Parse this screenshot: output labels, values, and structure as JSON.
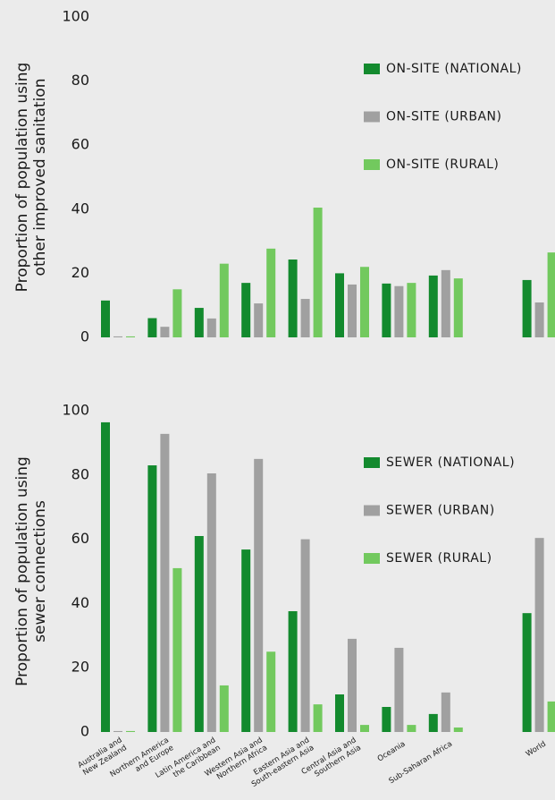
{
  "chart_data": [
    {
      "type": "bar",
      "ylabel": [
        "Proportion of population using",
        "other improved sanitation"
      ],
      "ylim": [
        0,
        100
      ],
      "yticks": [
        0,
        20,
        40,
        60,
        80,
        100
      ],
      "series": [
        {
          "name": "ON-SITE (NATIONAL)",
          "color": "#138a2e",
          "values": [
            11.5,
            6,
            9.2,
            17,
            24.3,
            20,
            16.8,
            19.3,
            null,
            17.9
          ]
        },
        {
          "name": "ON-SITE (URBAN)",
          "color": "#a0a0a0",
          "values": [
            0.3,
            3.3,
            5.9,
            10.6,
            12,
            16.5,
            16,
            21,
            null,
            10.9
          ]
        },
        {
          "name": "ON-SITE (RURAL)",
          "color": "#72c95e",
          "values": [
            0.3,
            15,
            23,
            27.7,
            40.5,
            22,
            17,
            18.4,
            null,
            26.5
          ]
        }
      ]
    },
    {
      "type": "bar",
      "ylabel": [
        "Proportion of population using",
        "sewer connections"
      ],
      "ylim": [
        0,
        100
      ],
      "yticks": [
        0,
        20,
        40,
        60,
        80,
        100
      ],
      "categories": [
        "Australia and\nNew Zealand",
        "Northern America\nand Europe",
        "Latin America and\nthe Caribbean",
        "Western Asia and\nNorthern Africa",
        "Eastern Asia and\nSouth-eastern Asia",
        "Central Asia and\nSouthern Asia",
        "Oceania",
        "Sub-Saharan Africa",
        null,
        "World"
      ],
      "series": [
        {
          "name": "SEWER (NATIONAL)",
          "color": "#138a2e",
          "values": [
            96.4,
            83,
            61,
            56.8,
            37.6,
            11.7,
            7.8,
            5.6,
            null,
            37
          ]
        },
        {
          "name": "SEWER (URBAN)",
          "color": "#a0a0a0",
          "values": [
            0.3,
            92.8,
            80.5,
            85,
            60,
            29,
            26.2,
            12.3,
            null,
            60.4
          ]
        },
        {
          "name": "SEWER (RURAL)",
          "color": "#72c95e",
          "values": [
            0.3,
            51,
            14.5,
            25,
            8.6,
            2.2,
            2.2,
            1.4,
            null,
            9.5
          ]
        }
      ]
    }
  ]
}
